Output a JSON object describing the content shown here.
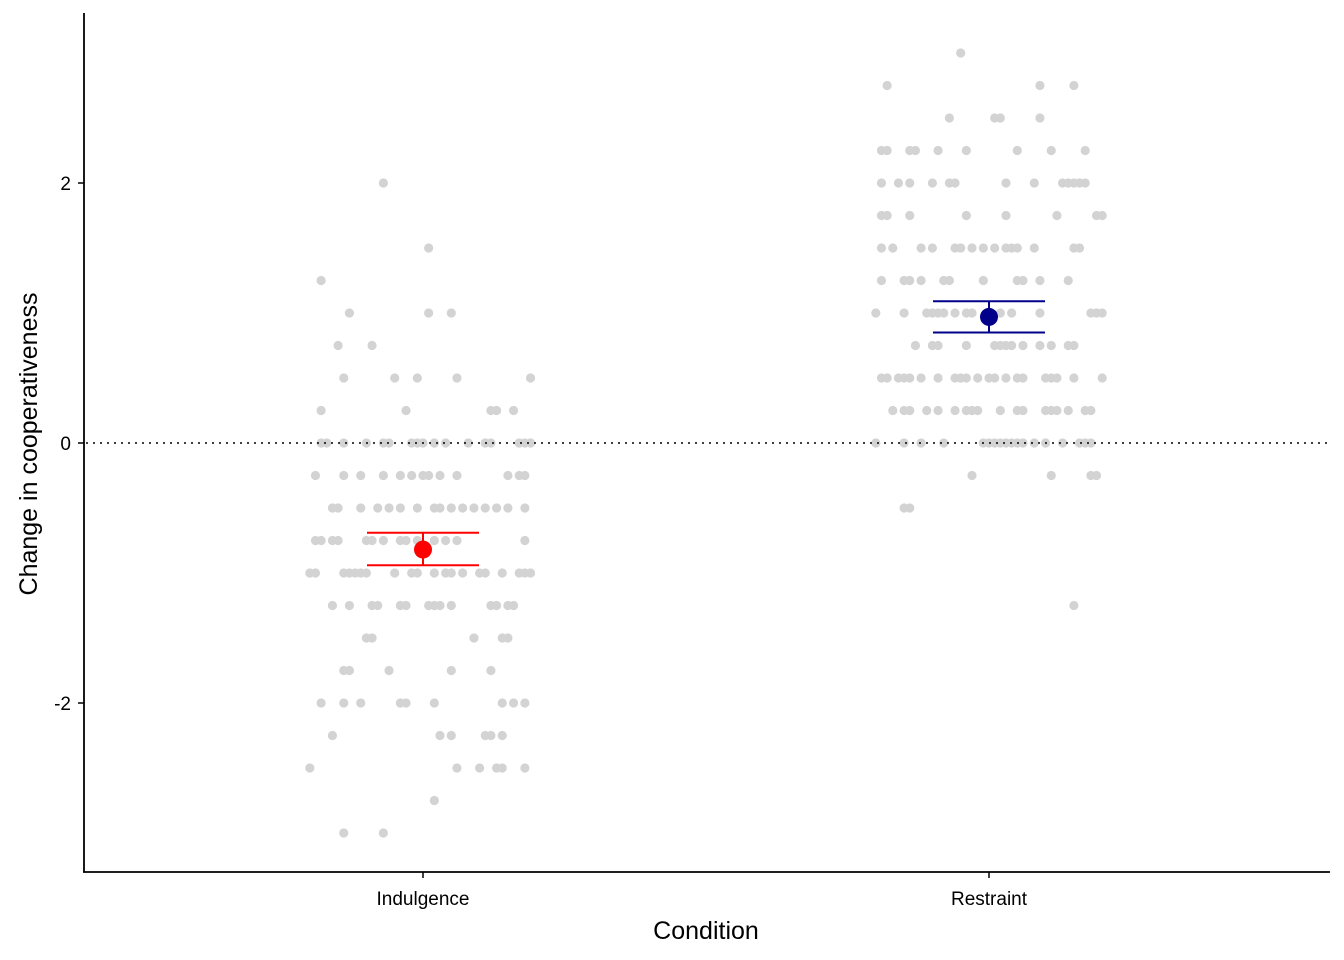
{
  "chart_data": {
    "type": "scatter",
    "subtype": "jittered strip plot with mean and standard-error bars",
    "title": "",
    "xlabel": "Condition",
    "ylabel": "Change in cooperativeness",
    "categories": [
      "Indulgence",
      "Restraint"
    ],
    "ylim": [
      -3.3,
      3.3
    ],
    "yticks": [
      -2,
      0,
      2
    ],
    "ytick_labels": [
      "-2",
      "0",
      "2"
    ],
    "reference_line": {
      "y": 0,
      "style": "dotted",
      "color": "#000000"
    },
    "grid": false,
    "legend": "none",
    "point_color": "#d3d3d3",
    "series": [
      {
        "name": "Indulgence",
        "mean": -0.82,
        "error_low": -0.94,
        "error_high": -0.69,
        "summary_color": "#ff0000",
        "points": [
          [
            -0.07,
            2.0
          ],
          [
            0.01,
            1.5
          ],
          [
            -0.18,
            1.25
          ],
          [
            -0.13,
            1.0
          ],
          [
            0.01,
            1.0
          ],
          [
            0.05,
            1.0
          ],
          [
            -0.15,
            0.75
          ],
          [
            -0.09,
            0.75
          ],
          [
            -0.14,
            0.5
          ],
          [
            -0.05,
            0.5
          ],
          [
            -0.01,
            0.5
          ],
          [
            0.06,
            0.5
          ],
          [
            0.19,
            0.5
          ],
          [
            -0.18,
            0.25
          ],
          [
            -0.03,
            0.25
          ],
          [
            0.12,
            0.25
          ],
          [
            0.13,
            0.25
          ],
          [
            0.16,
            0.25
          ],
          [
            -0.18,
            0.0
          ],
          [
            -0.17,
            0.0
          ],
          [
            -0.14,
            0.0
          ],
          [
            -0.1,
            0.0
          ],
          [
            -0.07,
            0.0
          ],
          [
            -0.06,
            0.0
          ],
          [
            -0.02,
            0.0
          ],
          [
            -0.01,
            0.0
          ],
          [
            0.0,
            0.0
          ],
          [
            0.02,
            0.0
          ],
          [
            0.04,
            0.0
          ],
          [
            0.08,
            0.0
          ],
          [
            0.11,
            0.0
          ],
          [
            0.12,
            0.0
          ],
          [
            0.17,
            0.0
          ],
          [
            0.18,
            0.0
          ],
          [
            0.19,
            0.0
          ],
          [
            -0.19,
            -0.25
          ],
          [
            -0.14,
            -0.25
          ],
          [
            -0.11,
            -0.25
          ],
          [
            -0.07,
            -0.25
          ],
          [
            -0.04,
            -0.25
          ],
          [
            -0.02,
            -0.25
          ],
          [
            0.0,
            -0.25
          ],
          [
            0.01,
            -0.25
          ],
          [
            0.03,
            -0.25
          ],
          [
            0.06,
            -0.25
          ],
          [
            0.15,
            -0.25
          ],
          [
            0.17,
            -0.25
          ],
          [
            0.18,
            -0.25
          ],
          [
            -0.16,
            -0.5
          ],
          [
            -0.15,
            -0.5
          ],
          [
            -0.11,
            -0.5
          ],
          [
            -0.08,
            -0.5
          ],
          [
            -0.06,
            -0.5
          ],
          [
            -0.04,
            -0.5
          ],
          [
            -0.01,
            -0.5
          ],
          [
            0.02,
            -0.5
          ],
          [
            0.03,
            -0.5
          ],
          [
            0.05,
            -0.5
          ],
          [
            0.07,
            -0.5
          ],
          [
            0.09,
            -0.5
          ],
          [
            0.11,
            -0.5
          ],
          [
            0.13,
            -0.5
          ],
          [
            0.15,
            -0.5
          ],
          [
            0.18,
            -0.5
          ],
          [
            -0.19,
            -0.75
          ],
          [
            -0.18,
            -0.75
          ],
          [
            -0.16,
            -0.75
          ],
          [
            -0.15,
            -0.75
          ],
          [
            -0.1,
            -0.75
          ],
          [
            -0.09,
            -0.75
          ],
          [
            -0.07,
            -0.75
          ],
          [
            -0.04,
            -0.75
          ],
          [
            -0.03,
            -0.75
          ],
          [
            -0.01,
            -0.75
          ],
          [
            0.02,
            -0.75
          ],
          [
            0.04,
            -0.75
          ],
          [
            0.06,
            -0.75
          ],
          [
            0.18,
            -0.75
          ],
          [
            -0.2,
            -1.0
          ],
          [
            -0.19,
            -1.0
          ],
          [
            -0.14,
            -1.0
          ],
          [
            -0.13,
            -1.0
          ],
          [
            -0.12,
            -1.0
          ],
          [
            -0.11,
            -1.0
          ],
          [
            -0.1,
            -1.0
          ],
          [
            -0.05,
            -1.0
          ],
          [
            -0.02,
            -1.0
          ],
          [
            -0.01,
            -1.0
          ],
          [
            0.02,
            -1.0
          ],
          [
            0.04,
            -1.0
          ],
          [
            0.05,
            -1.0
          ],
          [
            0.07,
            -1.0
          ],
          [
            0.1,
            -1.0
          ],
          [
            0.11,
            -1.0
          ],
          [
            0.14,
            -1.0
          ],
          [
            0.17,
            -1.0
          ],
          [
            0.18,
            -1.0
          ],
          [
            0.19,
            -1.0
          ],
          [
            -0.16,
            -1.25
          ],
          [
            -0.13,
            -1.25
          ],
          [
            -0.09,
            -1.25
          ],
          [
            -0.08,
            -1.25
          ],
          [
            -0.04,
            -1.25
          ],
          [
            -0.03,
            -1.25
          ],
          [
            0.01,
            -1.25
          ],
          [
            0.02,
            -1.25
          ],
          [
            0.03,
            -1.25
          ],
          [
            0.05,
            -1.25
          ],
          [
            0.12,
            -1.25
          ],
          [
            0.13,
            -1.25
          ],
          [
            0.15,
            -1.25
          ],
          [
            0.16,
            -1.25
          ],
          [
            -0.1,
            -1.5
          ],
          [
            -0.09,
            -1.5
          ],
          [
            0.09,
            -1.5
          ],
          [
            0.14,
            -1.5
          ],
          [
            0.15,
            -1.5
          ],
          [
            -0.14,
            -1.75
          ],
          [
            -0.13,
            -1.75
          ],
          [
            -0.06,
            -1.75
          ],
          [
            0.05,
            -1.75
          ],
          [
            0.12,
            -1.75
          ],
          [
            -0.18,
            -2.0
          ],
          [
            -0.14,
            -2.0
          ],
          [
            -0.11,
            -2.0
          ],
          [
            -0.04,
            -2.0
          ],
          [
            -0.03,
            -2.0
          ],
          [
            0.02,
            -2.0
          ],
          [
            0.14,
            -2.0
          ],
          [
            0.16,
            -2.0
          ],
          [
            0.18,
            -2.0
          ],
          [
            -0.16,
            -2.25
          ],
          [
            0.03,
            -2.25
          ],
          [
            0.05,
            -2.25
          ],
          [
            0.11,
            -2.25
          ],
          [
            0.12,
            -2.25
          ],
          [
            0.14,
            -2.25
          ],
          [
            -0.2,
            -2.5
          ],
          [
            0.06,
            -2.5
          ],
          [
            0.1,
            -2.5
          ],
          [
            0.13,
            -2.5
          ],
          [
            0.14,
            -2.5
          ],
          [
            0.18,
            -2.5
          ],
          [
            0.02,
            -2.75
          ],
          [
            -0.14,
            -3.0
          ],
          [
            -0.07,
            -3.0
          ]
        ]
      },
      {
        "name": "Restraint",
        "mean": 0.97,
        "error_low": 0.85,
        "error_high": 1.09,
        "summary_color": "#00008b",
        "points": [
          [
            -0.05,
            3.0
          ],
          [
            -0.18,
            2.75
          ],
          [
            0.09,
            2.75
          ],
          [
            0.15,
            2.75
          ],
          [
            -0.07,
            2.5
          ],
          [
            0.01,
            2.5
          ],
          [
            0.02,
            2.5
          ],
          [
            0.09,
            2.5
          ],
          [
            -0.19,
            2.25
          ],
          [
            -0.18,
            2.25
          ],
          [
            -0.14,
            2.25
          ],
          [
            -0.13,
            2.25
          ],
          [
            -0.09,
            2.25
          ],
          [
            -0.04,
            2.25
          ],
          [
            0.05,
            2.25
          ],
          [
            0.11,
            2.25
          ],
          [
            0.17,
            2.25
          ],
          [
            -0.19,
            2.0
          ],
          [
            -0.16,
            2.0
          ],
          [
            -0.14,
            2.0
          ],
          [
            -0.1,
            2.0
          ],
          [
            -0.07,
            2.0
          ],
          [
            -0.06,
            2.0
          ],
          [
            0.03,
            2.0
          ],
          [
            0.08,
            2.0
          ],
          [
            0.13,
            2.0
          ],
          [
            0.14,
            2.0
          ],
          [
            0.15,
            2.0
          ],
          [
            0.16,
            2.0
          ],
          [
            0.17,
            2.0
          ],
          [
            -0.19,
            1.75
          ],
          [
            -0.18,
            1.75
          ],
          [
            -0.14,
            1.75
          ],
          [
            -0.04,
            1.75
          ],
          [
            0.03,
            1.75
          ],
          [
            0.12,
            1.75
          ],
          [
            0.19,
            1.75
          ],
          [
            0.2,
            1.75
          ],
          [
            -0.19,
            1.5
          ],
          [
            -0.17,
            1.5
          ],
          [
            -0.12,
            1.5
          ],
          [
            -0.1,
            1.5
          ],
          [
            -0.06,
            1.5
          ],
          [
            -0.05,
            1.5
          ],
          [
            -0.03,
            1.5
          ],
          [
            -0.01,
            1.5
          ],
          [
            0.01,
            1.5
          ],
          [
            0.03,
            1.5
          ],
          [
            0.04,
            1.5
          ],
          [
            0.05,
            1.5
          ],
          [
            0.08,
            1.5
          ],
          [
            0.15,
            1.5
          ],
          [
            0.16,
            1.5
          ],
          [
            -0.19,
            1.25
          ],
          [
            -0.15,
            1.25
          ],
          [
            -0.14,
            1.25
          ],
          [
            -0.12,
            1.25
          ],
          [
            -0.08,
            1.25
          ],
          [
            -0.07,
            1.25
          ],
          [
            -0.01,
            1.25
          ],
          [
            0.05,
            1.25
          ],
          [
            0.06,
            1.25
          ],
          [
            0.09,
            1.25
          ],
          [
            0.14,
            1.25
          ],
          [
            -0.2,
            1.0
          ],
          [
            -0.15,
            1.0
          ],
          [
            -0.11,
            1.0
          ],
          [
            -0.1,
            1.0
          ],
          [
            -0.09,
            1.0
          ],
          [
            -0.08,
            1.0
          ],
          [
            -0.06,
            1.0
          ],
          [
            -0.04,
            1.0
          ],
          [
            -0.03,
            1.0
          ],
          [
            0.02,
            1.0
          ],
          [
            0.04,
            1.0
          ],
          [
            0.09,
            1.0
          ],
          [
            0.18,
            1.0
          ],
          [
            0.19,
            1.0
          ],
          [
            0.2,
            1.0
          ],
          [
            -0.13,
            0.75
          ],
          [
            -0.1,
            0.75
          ],
          [
            -0.09,
            0.75
          ],
          [
            -0.04,
            0.75
          ],
          [
            0.01,
            0.75
          ],
          [
            0.02,
            0.75
          ],
          [
            0.03,
            0.75
          ],
          [
            0.04,
            0.75
          ],
          [
            0.06,
            0.75
          ],
          [
            0.09,
            0.75
          ],
          [
            0.11,
            0.75
          ],
          [
            0.14,
            0.75
          ],
          [
            0.15,
            0.75
          ],
          [
            -0.19,
            0.5
          ],
          [
            -0.18,
            0.5
          ],
          [
            -0.16,
            0.5
          ],
          [
            -0.15,
            0.5
          ],
          [
            -0.14,
            0.5
          ],
          [
            -0.12,
            0.5
          ],
          [
            -0.09,
            0.5
          ],
          [
            -0.06,
            0.5
          ],
          [
            -0.05,
            0.5
          ],
          [
            -0.04,
            0.5
          ],
          [
            -0.02,
            0.5
          ],
          [
            0.0,
            0.5
          ],
          [
            0.01,
            0.5
          ],
          [
            0.03,
            0.5
          ],
          [
            0.05,
            0.5
          ],
          [
            0.06,
            0.5
          ],
          [
            0.1,
            0.5
          ],
          [
            0.11,
            0.5
          ],
          [
            0.12,
            0.5
          ],
          [
            0.15,
            0.5
          ],
          [
            0.2,
            0.5
          ],
          [
            -0.17,
            0.25
          ],
          [
            -0.15,
            0.25
          ],
          [
            -0.14,
            0.25
          ],
          [
            -0.11,
            0.25
          ],
          [
            -0.09,
            0.25
          ],
          [
            -0.06,
            0.25
          ],
          [
            -0.04,
            0.25
          ],
          [
            -0.03,
            0.25
          ],
          [
            -0.02,
            0.25
          ],
          [
            0.02,
            0.25
          ],
          [
            0.05,
            0.25
          ],
          [
            0.06,
            0.25
          ],
          [
            0.1,
            0.25
          ],
          [
            0.11,
            0.25
          ],
          [
            0.12,
            0.25
          ],
          [
            0.14,
            0.25
          ],
          [
            0.17,
            0.25
          ],
          [
            0.18,
            0.25
          ],
          [
            -0.2,
            0.0
          ],
          [
            -0.15,
            0.0
          ],
          [
            -0.12,
            0.0
          ],
          [
            -0.08,
            0.0
          ],
          [
            -0.01,
            0.0
          ],
          [
            0.0,
            0.0
          ],
          [
            0.01,
            0.0
          ],
          [
            0.02,
            0.0
          ],
          [
            0.03,
            0.0
          ],
          [
            0.04,
            0.0
          ],
          [
            0.05,
            0.0
          ],
          [
            0.06,
            0.0
          ],
          [
            0.08,
            0.0
          ],
          [
            0.1,
            0.0
          ],
          [
            0.13,
            0.0
          ],
          [
            0.16,
            0.0
          ],
          [
            0.17,
            0.0
          ],
          [
            0.18,
            0.0
          ],
          [
            -0.03,
            -0.25
          ],
          [
            0.11,
            -0.25
          ],
          [
            0.18,
            -0.25
          ],
          [
            0.19,
            -0.25
          ],
          [
            -0.15,
            -0.5
          ],
          [
            -0.14,
            -0.5
          ],
          [
            0.15,
            -1.25
          ]
        ]
      }
    ]
  }
}
